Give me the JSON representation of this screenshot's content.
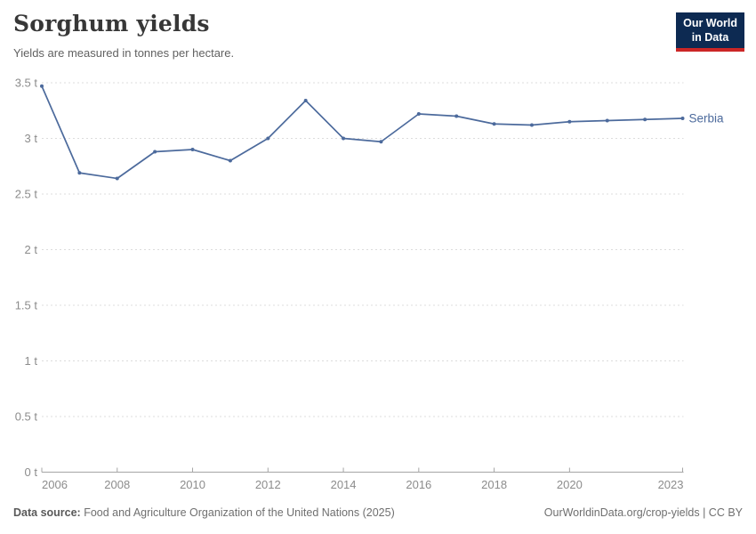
{
  "header": {
    "title": "Sorghum yields",
    "subtitle": "Yields are measured in tonnes per hectare.",
    "logo": {
      "line1": "Our World",
      "line2": "in Data",
      "bg_color": "#0d2a52",
      "accent_color": "#cb2626"
    }
  },
  "chart_data": {
    "type": "line",
    "title": "Sorghum yields",
    "subtitle": "Yields are measured in tonnes per hectare.",
    "unit": "t",
    "x": [
      2006,
      2007,
      2008,
      2009,
      2010,
      2011,
      2012,
      2013,
      2014,
      2015,
      2016,
      2017,
      2018,
      2019,
      2020,
      2021,
      2022,
      2023
    ],
    "series": [
      {
        "name": "Serbia",
        "color": "#4c6a9c",
        "values": [
          3.47,
          2.69,
          2.64,
          2.88,
          2.9,
          2.8,
          3.0,
          3.34,
          3.0,
          2.97,
          3.22,
          3.2,
          3.13,
          3.12,
          3.15,
          3.16,
          3.17,
          3.18
        ]
      }
    ],
    "xlim": [
      2006,
      2023
    ],
    "ylim": [
      0,
      3.5
    ],
    "xticks": [
      2006,
      2008,
      2010,
      2012,
      2014,
      2016,
      2018,
      2020,
      2023
    ],
    "yticks": [
      {
        "value": 0,
        "label": "0 t"
      },
      {
        "value": 0.5,
        "label": "0.5 t"
      },
      {
        "value": 1,
        "label": "1 t"
      },
      {
        "value": 1.5,
        "label": "1.5 t"
      },
      {
        "value": 2,
        "label": "2 t"
      },
      {
        "value": 2.5,
        "label": "2.5 t"
      },
      {
        "value": 3,
        "label": "3 t"
      },
      {
        "value": 3.5,
        "label": "3.5 t"
      }
    ],
    "grid": "horizontal-dashed",
    "legend": "end-of-line-label",
    "colors": {
      "gridline": "#dcdcdc",
      "axis": "#a5a5a5",
      "tick_label": "#8c8c8c"
    }
  },
  "footer": {
    "source_label": "Data source:",
    "source_text": "Food and Agriculture Organization of the United Nations (2025)",
    "credit": "OurWorldinData.org/crop-yields | CC BY"
  }
}
